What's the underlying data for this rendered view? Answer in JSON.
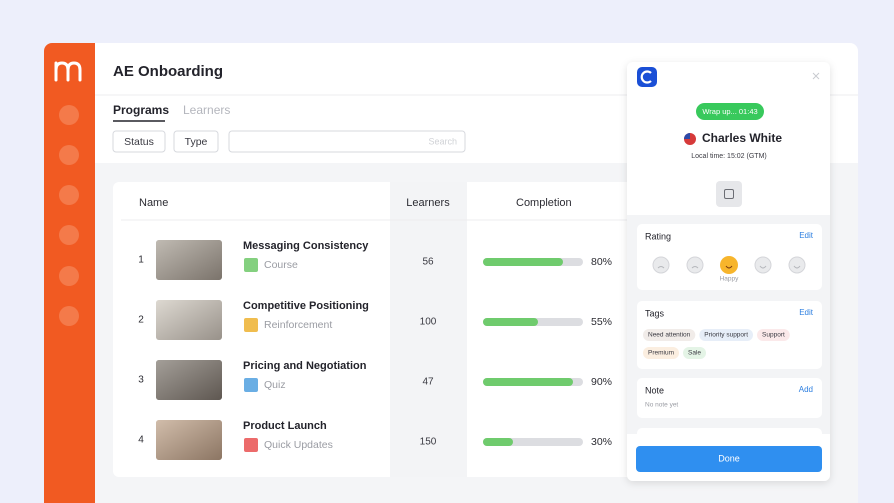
{
  "header": {
    "title": "AE Onboarding"
  },
  "tabs": [
    "Programs",
    "Learners"
  ],
  "filters": [
    "Status",
    "Type"
  ],
  "search_placeholder": "Search",
  "table": {
    "columns": [
      "Name",
      "Learners",
      "Completion"
    ],
    "rows": [
      {
        "index": 1,
        "title": "Messaging Consistency",
        "tag": "Course",
        "tag_color": "#84d07f",
        "learners": 56,
        "completion": {
          "value": 80,
          "label": "80%"
        }
      },
      {
        "index": 2,
        "title": "Competitive Positioning",
        "tag": "Reinforcement",
        "tag_color": "#f0bd4f",
        "learners": 100,
        "completion": {
          "value": 55,
          "label": "55%"
        }
      },
      {
        "index": 3,
        "title": "Pricing and Negotiation",
        "tag": "Quiz",
        "tag_color": "#6aaee4",
        "learners": 47,
        "completion": {
          "value": 90,
          "label": "90%"
        }
      },
      {
        "index": 4,
        "title": "Product Launch",
        "tag": "Quick Updates",
        "tag_color": "#ec6b6b",
        "learners": 150,
        "completion": {
          "value": 30,
          "label": "30%"
        }
      }
    ]
  },
  "panel": {
    "timer": "Wrap up... 01:43",
    "name": "Charles White",
    "local_time": "Local time: 15:02 (GTM)",
    "rating": {
      "title": "Rating",
      "action": "Edit",
      "selected_label": "Happy"
    },
    "tags": {
      "title": "Tags",
      "action": "Edit",
      "items": [
        {
          "label": "Need attention",
          "color": "#f1ece9"
        },
        {
          "label": "Priority support",
          "color": "#e7eef8"
        },
        {
          "label": "Support",
          "color": "#fbe9ea"
        },
        {
          "label": "Premium",
          "color": "#fbeee0"
        },
        {
          "label": "Sale",
          "color": "#e4f4e6"
        }
      ]
    },
    "note": {
      "title": "Note",
      "action": "Add",
      "empty": "No note yet"
    },
    "done": "Done"
  }
}
